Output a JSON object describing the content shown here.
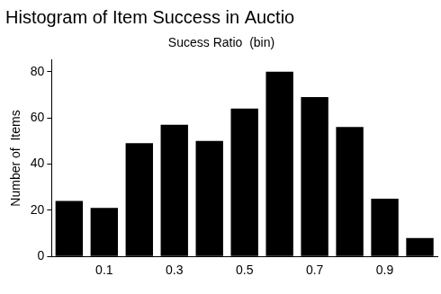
{
  "chart_data": {
    "type": "histogram",
    "title": "Histogram of Item Success in Auctio",
    "xlabel": "Sucess Ratio  (bin)",
    "ylabel": "Number of  Items",
    "bins": [
      -0.05,
      0.05,
      0.15,
      0.25,
      0.35,
      0.45,
      0.55,
      0.65,
      0.75,
      0.85,
      0.95,
      1.05
    ],
    "values": [
      24,
      21,
      49,
      57,
      50,
      64,
      80,
      69,
      56,
      25,
      8
    ],
    "color": "#000000",
    "xlim": [
      -0.05,
      1.05
    ],
    "xticks": [
      0.1,
      0.3,
      0.5,
      0.7,
      0.9
    ],
    "ylim": [
      0,
      85
    ],
    "yticks": [
      0,
      20,
      40,
      60,
      80
    ],
    "grid": false
  }
}
